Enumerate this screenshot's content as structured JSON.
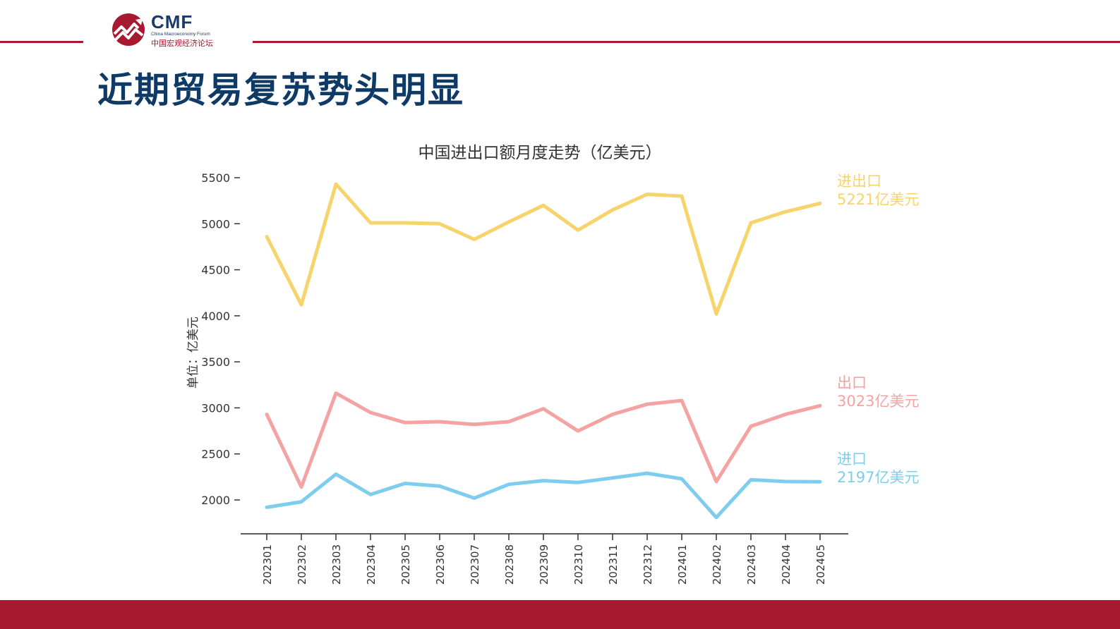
{
  "header": {
    "logo_text": "CMF",
    "logo_subtitle_en": "China Macroeconomy Forum",
    "logo_subtitle_cn": "中国宏观经济论坛"
  },
  "slide": {
    "title": "近期贸易复苏势头明显"
  },
  "colors": {
    "brand_red": "#a6192e",
    "title_blue": "#0f3a66",
    "total_series": "#f7d46b",
    "export_series": "#f4a3a3",
    "import_series": "#7fcdee"
  },
  "chart_data": {
    "type": "line",
    "title": "中国进出口额月度走势（亿美元）",
    "ylabel": "单位：亿美元",
    "xlabel": "",
    "ylim": [
      1700,
      5550
    ],
    "yticks": [
      2000,
      2500,
      3000,
      3500,
      4000,
      4500,
      5000,
      5500
    ],
    "grid": false,
    "categories": [
      "202301",
      "202302",
      "202303",
      "202304",
      "202305",
      "202306",
      "202307",
      "202308",
      "202309",
      "202310",
      "202311",
      "202312",
      "202401",
      "202402",
      "202403",
      "202404",
      "202405"
    ],
    "series": [
      {
        "key": "total",
        "name": "进出口",
        "end_label": "5221亿美元",
        "color": "#f7d46b",
        "values": [
          4860,
          4120,
          5430,
          5010,
          5010,
          5000,
          4830,
          5020,
          5200,
          4930,
          5150,
          5320,
          5300,
          4020,
          5010,
          5130,
          5221
        ]
      },
      {
        "key": "export",
        "name": "出口",
        "end_label": "3023亿美元",
        "color": "#f4a3a3",
        "values": [
          2930,
          2140,
          3160,
          2950,
          2840,
          2850,
          2820,
          2850,
          2990,
          2750,
          2930,
          3040,
          3080,
          2200,
          2800,
          2930,
          3023
        ]
      },
      {
        "key": "import",
        "name": "进口",
        "end_label": "2197亿美元",
        "color": "#7fcdee",
        "values": [
          1920,
          1980,
          2280,
          2060,
          2180,
          2150,
          2020,
          2170,
          2210,
          2190,
          2240,
          2290,
          2230,
          1810,
          2220,
          2200,
          2197
        ]
      }
    ]
  }
}
